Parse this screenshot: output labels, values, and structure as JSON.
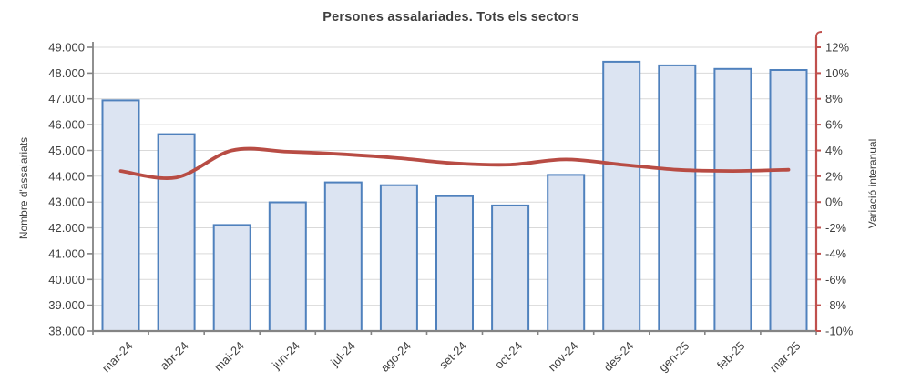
{
  "chart_data": {
    "type": "combo",
    "title": "Persones assalariades. Tots els sectors",
    "ylabel_left": "Nombre d'assalariats",
    "ylabel_right": "Variació interanual",
    "categories": [
      "mar-24",
      "abr-24",
      "mai-24",
      "jun-24",
      "jul-24",
      "ago-24",
      "set-24",
      "oct-24",
      "nov-24",
      "des-24",
      "gen-25",
      "feb-25",
      "mar-25"
    ],
    "series": [
      {
        "name": "Nombre d'assalariats",
        "type": "bar",
        "axis": "left",
        "values": [
          46940,
          45630,
          42110,
          42990,
          43760,
          43650,
          43230,
          42870,
          44050,
          48440,
          48300,
          48160,
          48120
        ]
      },
      {
        "name": "Variació interanual",
        "type": "line",
        "axis": "right",
        "values": [
          2.4,
          1.9,
          4.0,
          3.9,
          3.7,
          3.4,
          3.0,
          2.9,
          3.3,
          2.9,
          2.5,
          2.4,
          2.5
        ]
      }
    ],
    "ylim_left": [
      38000,
      49000
    ],
    "ylim_right": [
      -10,
      12
    ],
    "left_ticks": [
      "49.000",
      "48.000",
      "47.000",
      "46.000",
      "45.000",
      "44.000",
      "43.000",
      "42.000",
      "41.000",
      "40.000",
      "39.000",
      "38.000"
    ],
    "right_ticks": [
      "12%",
      "10%",
      "8%",
      "6%",
      "4%",
      "2%",
      "0%",
      "-2%",
      "-4%",
      "-6%",
      "-8%",
      "-10%"
    ],
    "grid": true,
    "legend": "none",
    "colors": {
      "bar_fill": "#dce4f2",
      "bar_stroke": "#4f81bd",
      "line": "#b84c44",
      "right_axis": "#c0504d",
      "left_axis": "#848484",
      "gridline": "#d9d9d9",
      "text": "#3f3f3f"
    }
  }
}
